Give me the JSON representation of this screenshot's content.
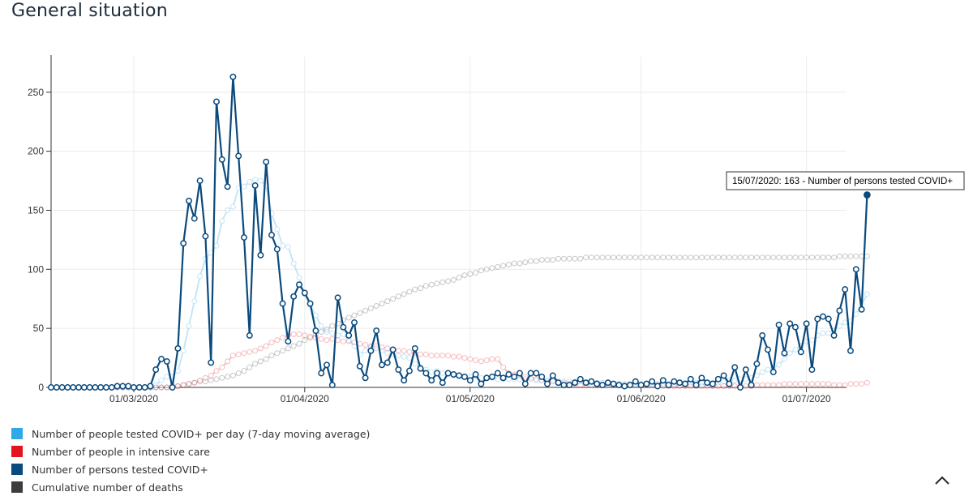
{
  "page": {
    "title": "General situation"
  },
  "tooltip": {
    "text": "15/07/2020: 163 - Number of persons tested COVID+"
  },
  "legend": [
    {
      "label": "Number of people tested COVID+ per day (7-day moving average)",
      "color": "#2ea8e6"
    },
    {
      "label": "Number of people in intensive care",
      "color": "#e3141f"
    },
    {
      "label": "Number of persons tested COVID+",
      "color": "#0a4a7d"
    },
    {
      "label": "Cumulative number of deaths",
      "color": "#3c3c3c"
    }
  ],
  "icons": {
    "collapse": "chevron-up-icon"
  },
  "chart_data": {
    "type": "line",
    "x_start": "2020-02-15",
    "x_end": "2020-07-15",
    "xticks": [
      "01/03/2020",
      "01/04/2020",
      "01/05/2020",
      "01/06/2020",
      "01/07/2020"
    ],
    "ylim": [
      0,
      270
    ],
    "yticks": [
      0,
      50,
      100,
      150,
      200,
      250
    ],
    "series": [
      {
        "name": "Number of persons tested COVID+",
        "color": "#0a4a7d",
        "values": [
          0,
          0,
          0,
          0,
          0,
          0,
          0,
          0,
          0,
          0,
          0,
          0,
          1,
          1,
          1,
          0,
          0,
          0,
          1,
          15,
          24,
          22,
          0,
          33,
          122,
          158,
          143,
          175,
          128,
          21,
          242,
          193,
          170,
          263,
          196,
          127,
          44,
          171,
          112,
          191,
          129,
          117,
          71,
          39,
          77,
          87,
          80,
          71,
          48,
          12,
          19,
          2,
          76,
          51,
          44,
          55,
          18,
          8,
          31,
          48,
          19,
          21,
          32,
          15,
          6,
          14,
          33,
          16,
          12,
          6,
          12,
          4,
          12,
          11,
          10,
          9,
          6,
          11,
          3,
          8,
          9,
          12,
          8,
          11,
          9,
          12,
          3,
          12,
          12,
          9,
          3,
          10,
          4,
          2,
          2,
          4,
          7,
          4,
          5,
          3,
          2,
          4,
          3,
          2,
          1,
          2,
          5,
          2,
          3,
          5,
          1,
          6,
          2,
          5,
          4,
          3,
          7,
          2,
          8,
          4,
          3,
          7,
          10,
          3,
          17,
          0,
          15,
          2,
          20,
          44,
          32,
          13,
          53,
          29,
          54,
          51,
          30,
          54,
          15,
          58,
          60,
          58,
          44,
          65,
          83,
          31,
          100,
          66,
          163
        ]
      },
      {
        "name": "Number of people tested COVID+ per day (7-day moving average)",
        "color": "#2ea8e6",
        "values": [
          0,
          0,
          0,
          0,
          0,
          0,
          0,
          0,
          0,
          0,
          0,
          0,
          0,
          0,
          0,
          0,
          0,
          0,
          0,
          2,
          6,
          9,
          9,
          14,
          31,
          52,
          73,
          94,
          109,
          114,
          120,
          141,
          150,
          153,
          169,
          170,
          174,
          176,
          175,
          171,
          147,
          134,
          120,
          119,
          105,
          93,
          79,
          70,
          61,
          52,
          47,
          46,
          44,
          45,
          40,
          35,
          28,
          31,
          34,
          33,
          31,
          29,
          28,
          27,
          26,
          25,
          20,
          17,
          15,
          13,
          14,
          12,
          11,
          10,
          10,
          9,
          9,
          9,
          8,
          8,
          8,
          7,
          7,
          7,
          7,
          7,
          7,
          7,
          6,
          6,
          6,
          6,
          5,
          5,
          5,
          5,
          5,
          4,
          4,
          4,
          4,
          3,
          3,
          3,
          3,
          3,
          3,
          3,
          3,
          3,
          3,
          3,
          3,
          3,
          4,
          4,
          4,
          4,
          4,
          4,
          4,
          4,
          5,
          6,
          6,
          7,
          7,
          8,
          10,
          13,
          15,
          17,
          19,
          24,
          29,
          32,
          35,
          39,
          40,
          44,
          46,
          46,
          48,
          52,
          55,
          56,
          62,
          70,
          79
        ]
      },
      {
        "name": "Number of people in intensive care",
        "color": "#e3141f",
        "values": [
          0,
          0,
          0,
          0,
          0,
          0,
          0,
          0,
          0,
          0,
          0,
          0,
          0,
          0,
          0,
          0,
          0,
          0,
          0,
          0,
          0,
          0,
          0,
          1,
          2,
          3,
          4,
          6,
          8,
          10,
          14,
          17,
          22,
          27,
          28,
          29,
          30,
          31,
          33,
          35,
          38,
          40,
          42,
          44,
          45,
          45,
          44,
          43,
          42,
          41,
          40,
          41,
          40,
          39,
          39,
          38,
          37,
          36,
          35,
          35,
          34,
          33,
          32,
          31,
          31,
          30,
          29,
          28,
          28,
          27,
          27,
          27,
          27,
          26,
          26,
          25,
          24,
          23,
          22,
          23,
          24,
          24,
          17,
          12,
          11,
          10,
          9,
          8,
          7,
          6,
          5,
          5,
          4,
          4,
          3,
          3,
          2,
          2,
          2,
          2,
          2,
          2,
          2,
          2,
          2,
          2,
          2,
          2,
          2,
          2,
          2,
          1,
          1,
          1,
          1,
          1,
          1,
          1,
          1,
          1,
          1,
          1,
          1,
          1,
          1,
          1,
          1,
          1,
          2,
          2,
          2,
          2,
          2,
          3,
          3,
          3,
          3,
          3,
          3,
          3,
          3,
          3,
          2,
          2,
          2,
          3,
          3,
          3,
          4
        ]
      },
      {
        "name": "Cumulative number of deaths",
        "color": "#3c3c3c",
        "values": [
          0,
          0,
          0,
          0,
          0,
          0,
          0,
          0,
          0,
          0,
          0,
          0,
          0,
          0,
          0,
          0,
          0,
          0,
          0,
          0,
          0,
          0,
          1,
          1,
          2,
          3,
          4,
          5,
          5,
          6,
          7,
          8,
          9,
          10,
          12,
          14,
          17,
          20,
          22,
          24,
          27,
          29,
          31,
          33,
          35,
          37,
          40,
          42,
          45,
          47,
          49,
          52,
          54,
          57,
          59,
          61,
          63,
          65,
          67,
          69,
          71,
          73,
          75,
          77,
          79,
          81,
          83,
          84,
          86,
          87,
          88,
          89,
          90,
          91,
          93,
          95,
          96,
          97,
          99,
          100,
          101,
          102,
          103,
          104,
          105,
          105,
          106,
          107,
          107,
          108,
          108,
          108,
          109,
          109,
          109,
          109,
          109,
          110,
          110,
          110,
          110,
          110,
          110,
          110,
          110,
          110,
          110,
          110,
          110,
          110,
          110,
          110,
          110,
          110,
          110,
          110,
          110,
          110,
          110,
          110,
          110,
          110,
          110,
          110,
          110,
          110,
          110,
          110,
          110,
          110,
          110,
          110,
          110,
          110,
          110,
          110,
          110,
          110,
          110,
          110,
          110,
          110,
          110,
          111,
          111,
          111,
          111,
          111,
          111
        ]
      }
    ]
  }
}
